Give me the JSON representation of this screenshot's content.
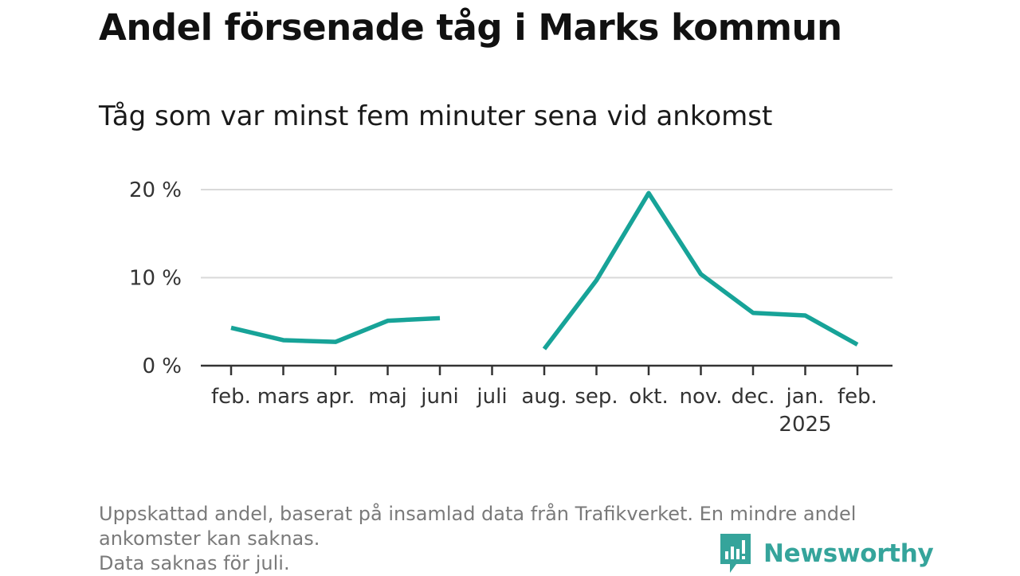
{
  "title": "Andel försenade tåg i Marks kommun",
  "subtitle": "Tåg som var minst fem minuter sena vid ankomst",
  "footnote": {
    "line1": "Uppskattad andel, baserat på insamlad data från Trafikverket. En mindre andel",
    "line2": "ankomster kan saknas.",
    "line3": "Data saknas för juli."
  },
  "brand": {
    "name": "Newsworthy",
    "icon": "newsworthy-logo-icon",
    "color": "#35a49b"
  },
  "chart_data": {
    "type": "line",
    "categories": [
      "feb.",
      "mars",
      "apr.",
      "maj",
      "juni",
      "juli",
      "aug.",
      "sep.",
      "okt.",
      "nov.",
      "dec.",
      "jan.",
      "feb."
    ],
    "year_labels": [
      "",
      "",
      "",
      "",
      "",
      "",
      "",
      "",
      "",
      "",
      "",
      "2025",
      ""
    ],
    "series": [
      {
        "values": [
          4.3,
          2.9,
          2.7,
          5.1,
          5.4,
          null,
          1.9,
          9.7,
          19.6,
          10.4,
          6.0,
          5.7,
          2.4
        ],
        "color": "#17a398"
      }
    ],
    "y_ticks": [
      0,
      10,
      20
    ],
    "y_tick_labels": [
      "0 %",
      "10 %",
      "20 %"
    ],
    "ylim": [
      0,
      20
    ],
    "grid": true,
    "legend": "none"
  }
}
